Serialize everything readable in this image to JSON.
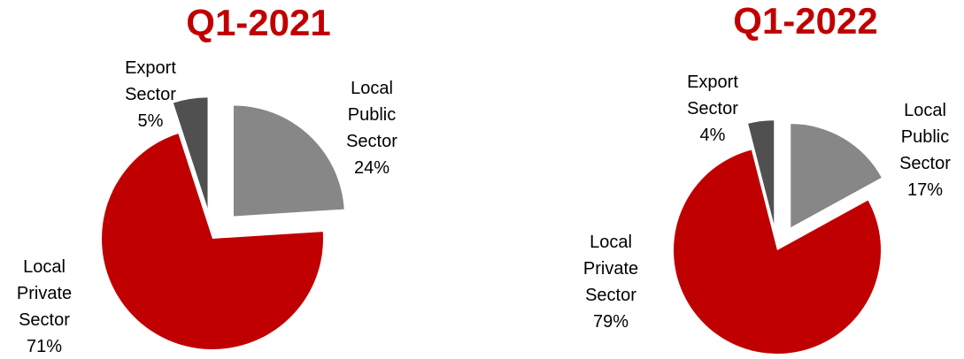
{
  "chart_data": [
    {
      "type": "pie",
      "title": "Q1-2021",
      "categories": [
        "Local Public Sector",
        "Local Private Sector",
        "Export Sector"
      ],
      "values": [
        24,
        71,
        5
      ],
      "value_labels": [
        "24%",
        "71%",
        "5%"
      ],
      "colors": [
        "#878787",
        "#c00000",
        "#505050"
      ]
    },
    {
      "type": "pie",
      "title": "Q1-2022",
      "categories": [
        "Local Public Sector",
        "Local Private Sector",
        "Export Sector"
      ],
      "values": [
        17,
        79,
        4
      ],
      "value_labels": [
        "17%",
        "79%",
        "4%"
      ],
      "colors": [
        "#878787",
        "#c00000",
        "#505050"
      ]
    }
  ]
}
